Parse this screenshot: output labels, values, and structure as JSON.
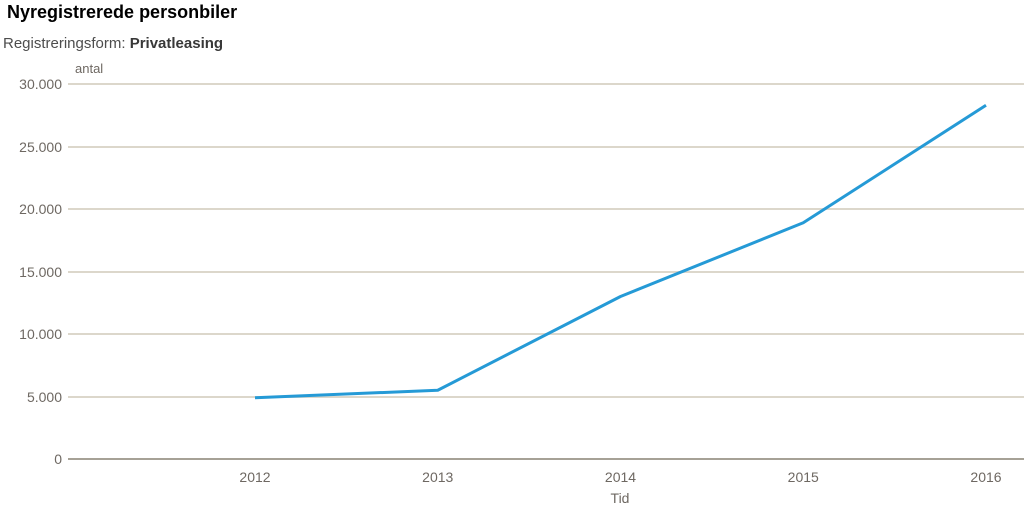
{
  "header": {
    "title": "Nyregistrerede personbiler",
    "subtitle_label": "Registreringsform: ",
    "subtitle_value": "Privatleasing"
  },
  "chart_data": {
    "type": "line",
    "title": "Nyregistrerede personbiler",
    "subtitle": "Registreringsform: Privatleasing",
    "x": [
      2012,
      2013,
      2014,
      2015,
      2016
    ],
    "series": [
      {
        "name": "Privatleasing",
        "values": [
          4900,
          5500,
          13000,
          18900,
          28300
        ]
      }
    ],
    "xlabel": "Tid",
    "ylabel": "antal",
    "ylim": [
      0,
      30000
    ],
    "yticks": [
      {
        "value": 0,
        "label": "0"
      },
      {
        "value": 5000,
        "label": "5.000"
      },
      {
        "value": 10000,
        "label": "10.000"
      },
      {
        "value": 15000,
        "label": "15.000"
      },
      {
        "value": 20000,
        "label": "20.000"
      },
      {
        "value": 25000,
        "label": "25.000"
      },
      {
        "value": 30000,
        "label": "30.000"
      }
    ],
    "grid": "horizontal",
    "legend": "none",
    "colors": {
      "line": "#259ad6",
      "gridline": "#dcd7cb",
      "axis_baseline": "#a6a196",
      "tick_text": "#6e6862",
      "title_text": "#000000",
      "subtitle_text": "#4d4d4d"
    }
  }
}
